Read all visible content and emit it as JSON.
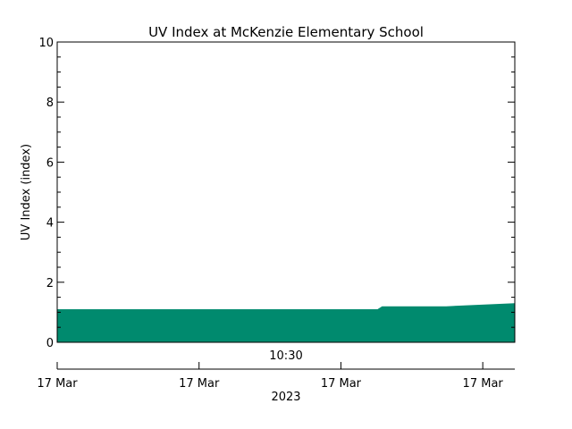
{
  "chart_data": {
    "type": "area",
    "title": "UV Index at McKenzie Elementary School",
    "ylabel": "UV Index (index)",
    "xlabel": "2023",
    "ylim": [
      0,
      10
    ],
    "yticks": [
      0,
      2,
      4,
      6,
      8,
      10
    ],
    "ytick_labels": [
      "0",
      "2",
      "4",
      "6",
      "8",
      "10"
    ],
    "xlim": [
      "09:50",
      "11:30"
    ],
    "xticks": [
      "09:50",
      "10:21",
      "10:52",
      "11:23"
    ],
    "xtick_labels": [
      "17 Mar",
      "17 Mar",
      "17 Mar",
      "17 Mar"
    ],
    "time_label": "10:30",
    "series": [
      {
        "x": [
          "09:50",
          "11:00",
          "11:01",
          "11:11",
          "11:15",
          "11:30"
        ],
        "y": [
          1.1,
          1.1,
          1.2,
          1.2,
          1.2,
          1.3
        ]
      }
    ],
    "fill_color": "#008a6e",
    "grid": false
  }
}
